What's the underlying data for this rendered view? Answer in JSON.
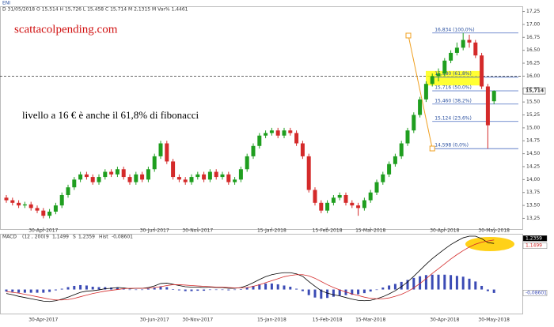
{
  "chart_data": {
    "type": "candlestick",
    "symbol": "ENI",
    "ohlc_header": "D 31/05/2018   O 15,514   H 15,726   L 15,458   C 15,714   M 2,1315 M   Var% 1,4461",
    "site": "scattacolpending.com",
    "note": "livello a 16 € è anche il 61,8% di fibonacci",
    "last_price_label": "15,714",
    "up_color": "#1f9e1f",
    "down_color": "#d42a2a",
    "ylim": [
      13.15,
      17.35
    ],
    "yticks": [
      {
        "value": 17.25,
        "label": "17,25"
      },
      {
        "value": 17,
        "label": "17,00"
      },
      {
        "value": 16.75,
        "label": "16,75"
      },
      {
        "value": 16.5,
        "label": "16,50"
      },
      {
        "value": 16.25,
        "label": "16,25"
      },
      {
        "value": 16,
        "label": "16,00"
      },
      {
        "value": 15.75,
        "label": "15,75"
      },
      {
        "value": 15.5,
        "label": "15,50"
      },
      {
        "value": 15.25,
        "label": "15,25"
      },
      {
        "value": 15,
        "label": "15,00"
      },
      {
        "value": 14.75,
        "label": "14,75"
      },
      {
        "value": 14.5,
        "label": "14,50"
      },
      {
        "value": 14.25,
        "label": "14,25"
      },
      {
        "value": 14,
        "label": "14,00"
      },
      {
        "value": 13.75,
        "label": "13,75"
      },
      {
        "value": 13.5,
        "label": "13,50"
      },
      {
        "value": 13.25,
        "label": "13,25"
      }
    ],
    "dashed_level": 16,
    "fib_levels": [
      {
        "value": 16.834,
        "label": "16,834 (100,0%)"
      },
      {
        "value": 15.98,
        "label": "15,980 (61,8%)"
      },
      {
        "value": 15.716,
        "label": "15,716 (50,0%)"
      },
      {
        "value": 15.46,
        "label": "15,460 (38,2%)"
      },
      {
        "value": 15.124,
        "label": "15,124 (23,6%)"
      },
      {
        "value": 14.598,
        "label": "14,598 (0,0%)"
      }
    ],
    "categories": [
      null,
      null,
      null,
      null,
      null,
      null,
      "30-Apr-2017",
      null,
      null,
      null,
      null,
      null,
      null,
      null,
      null,
      null,
      null,
      null,
      null,
      null,
      null,
      null,
      null,
      null,
      "30-Jun-2017",
      null,
      null,
      null,
      null,
      null,
      null,
      "30-Nov-2017",
      null,
      null,
      null,
      null,
      null,
      null,
      null,
      null,
      null,
      null,
      null,
      "15-Jan-2018",
      null,
      null,
      null,
      null,
      null,
      null,
      null,
      null,
      "15-Feb-2018",
      null,
      null,
      null,
      null,
      null,
      null,
      "15-Mar-2018",
      null,
      null,
      null,
      null,
      null,
      null,
      null,
      null,
      null,
      null,
      null,
      "30-Apr-2018",
      null,
      null,
      null,
      null,
      null,
      null,
      null,
      "30-May-2018"
    ],
    "candles": [
      [
        13.65,
        13.7,
        13.55,
        13.6
      ],
      [
        13.6,
        13.65,
        13.5,
        13.55
      ],
      [
        13.55,
        13.6,
        13.45,
        13.5
      ],
      [
        13.5,
        13.57,
        13.45,
        13.52
      ],
      [
        13.52,
        13.57,
        13.4,
        13.45
      ],
      [
        13.45,
        13.5,
        13.35,
        13.4
      ],
      [
        13.4,
        13.45,
        13.25,
        13.3
      ],
      [
        13.3,
        13.43,
        13.25,
        13.38
      ],
      [
        13.38,
        13.55,
        13.33,
        13.5
      ],
      [
        13.5,
        13.75,
        13.45,
        13.7
      ],
      [
        13.7,
        13.9,
        13.65,
        13.85
      ],
      [
        13.85,
        14.05,
        13.8,
        14.0
      ],
      [
        14.0,
        14.15,
        13.95,
        14.1
      ],
      [
        14.1,
        14.15,
        14.0,
        14.05
      ],
      [
        14.05,
        14.1,
        13.9,
        13.95
      ],
      [
        13.95,
        14.1,
        13.9,
        14.05
      ],
      [
        14.05,
        14.2,
        14.0,
        14.15
      ],
      [
        14.15,
        14.2,
        14.05,
        14.1
      ],
      [
        14.1,
        14.25,
        14.05,
        14.2
      ],
      [
        14.2,
        14.25,
        14.0,
        14.05
      ],
      [
        14.05,
        14.1,
        13.9,
        13.95
      ],
      [
        13.95,
        14.15,
        13.9,
        14.1
      ],
      [
        14.1,
        14.15,
        13.95,
        14.0
      ],
      [
        14.0,
        14.25,
        13.95,
        14.2
      ],
      [
        14.2,
        14.5,
        14.15,
        14.45
      ],
      [
        14.45,
        14.75,
        14.4,
        14.7
      ],
      [
        14.7,
        14.75,
        14.3,
        14.35
      ],
      [
        14.35,
        14.4,
        14.0,
        14.05
      ],
      [
        14.05,
        14.1,
        13.95,
        14.0
      ],
      [
        14.0,
        14.05,
        13.9,
        13.95
      ],
      [
        13.95,
        14.1,
        13.9,
        14.05
      ],
      [
        14.05,
        14.15,
        14.0,
        14.1
      ],
      [
        14.1,
        14.15,
        13.95,
        14.0
      ],
      [
        14.0,
        14.2,
        13.95,
        14.15
      ],
      [
        14.15,
        14.2,
        14.0,
        14.05
      ],
      [
        14.05,
        14.15,
        14.0,
        14.1
      ],
      [
        14.1,
        14.15,
        13.9,
        13.95
      ],
      [
        13.95,
        14.05,
        13.9,
        14.0
      ],
      [
        14.0,
        14.25,
        13.95,
        14.2
      ],
      [
        14.2,
        14.5,
        14.15,
        14.45
      ],
      [
        14.45,
        14.7,
        14.4,
        14.65
      ],
      [
        14.65,
        14.9,
        14.6,
        14.85
      ],
      [
        14.85,
        14.95,
        14.8,
        14.9
      ],
      [
        14.9,
        15.0,
        14.85,
        14.95
      ],
      [
        14.95,
        15.0,
        14.8,
        14.85
      ],
      [
        14.85,
        15.0,
        14.8,
        14.95
      ],
      [
        14.95,
        15.0,
        14.85,
        14.9
      ],
      [
        14.9,
        14.95,
        14.65,
        14.7
      ],
      [
        14.7,
        14.75,
        14.4,
        14.45
      ],
      [
        14.45,
        14.5,
        13.75,
        13.8
      ],
      [
        13.8,
        13.85,
        13.5,
        13.55
      ],
      [
        13.55,
        13.6,
        13.35,
        13.4
      ],
      [
        13.4,
        13.6,
        13.35,
        13.55
      ],
      [
        13.55,
        13.7,
        13.5,
        13.65
      ],
      [
        13.65,
        13.75,
        13.6,
        13.7
      ],
      [
        13.7,
        13.75,
        13.5,
        13.55
      ],
      [
        13.55,
        13.6,
        13.45,
        13.5
      ],
      [
        13.5,
        13.55,
        13.3,
        13.45
      ],
      [
        13.45,
        13.65,
        13.4,
        13.6
      ],
      [
        13.6,
        13.8,
        13.55,
        13.75
      ],
      [
        13.75,
        14.0,
        13.7,
        13.95
      ],
      [
        13.95,
        14.15,
        13.9,
        14.1
      ],
      [
        14.1,
        14.35,
        14.05,
        14.3
      ],
      [
        14.3,
        14.5,
        14.25,
        14.45
      ],
      [
        14.45,
        14.75,
        14.4,
        14.7
      ],
      [
        14.7,
        15.0,
        14.65,
        14.95
      ],
      [
        14.95,
        15.3,
        14.9,
        15.25
      ],
      [
        15.25,
        15.6,
        15.2,
        15.55
      ],
      [
        15.55,
        15.9,
        15.5,
        15.85
      ],
      [
        15.85,
        16.05,
        15.8,
        16.0
      ],
      [
        16.0,
        16.15,
        15.9,
        16.05
      ],
      [
        16.05,
        16.35,
        16.0,
        16.3
      ],
      [
        16.3,
        16.5,
        16.25,
        16.45
      ],
      [
        16.45,
        16.65,
        16.4,
        16.55
      ],
      [
        16.55,
        16.834,
        16.5,
        16.7
      ],
      [
        16.7,
        16.8,
        16.55,
        16.65
      ],
      [
        16.65,
        16.7,
        16.35,
        16.4
      ],
      [
        16.4,
        16.45,
        15.75,
        15.8
      ],
      [
        15.8,
        15.85,
        14.598,
        15.05
      ],
      [
        15.514,
        15.726,
        15.458,
        15.714
      ]
    ],
    "macd": {
      "name": "MACD",
      "params": "(12 , 200)",
      "period": "9",
      "macd_value": "1,1499",
      "signal_label": "S",
      "signal_value": "1,2359",
      "hist_label": "Hist",
      "hist_value": "-0,08601",
      "ylim": [
        -0.6,
        1.37
      ],
      "series": [
        {
          "color": "#000000",
          "values": [
            -0.1,
            -0.13,
            -0.17,
            -0.2,
            -0.23,
            -0.26,
            -0.29,
            -0.3,
            -0.28,
            -0.24,
            -0.19,
            -0.13,
            -0.07,
            -0.04,
            -0.03,
            -0.01,
            0.02,
            0.03,
            0.05,
            0.04,
            0.02,
            0.03,
            0.03,
            0.05,
            0.09,
            0.15,
            0.16,
            0.13,
            0.1,
            0.07,
            0.06,
            0.06,
            0.05,
            0.06,
            0.05,
            0.05,
            0.03,
            0.03,
            0.05,
            0.1,
            0.17,
            0.25,
            0.32,
            0.37,
            0.4,
            0.42,
            0.42,
            0.39,
            0.33,
            0.2,
            0.08,
            -0.03,
            -0.09,
            -0.13,
            -0.16,
            -0.2,
            -0.24,
            -0.27,
            -0.28,
            -0.27,
            -0.23,
            -0.18,
            -0.11,
            -0.03,
            0.07,
            0.19,
            0.33,
            0.48,
            0.63,
            0.77,
            0.89,
            1.01,
            1.12,
            1.21,
            1.29,
            1.33,
            1.33,
            1.27,
            1.17,
            1.1499
          ]
        },
        {
          "color": "#d42a2a",
          "values": [
            -0.05,
            -0.07,
            -0.09,
            -0.12,
            -0.15,
            -0.18,
            -0.21,
            -0.24,
            -0.26,
            -0.26,
            -0.25,
            -0.22,
            -0.18,
            -0.14,
            -0.1,
            -0.07,
            -0.04,
            -0.02,
            0.0,
            0.02,
            0.03,
            0.03,
            0.03,
            0.03,
            0.05,
            0.07,
            0.1,
            0.12,
            0.12,
            0.11,
            0.1,
            0.09,
            0.08,
            0.07,
            0.06,
            0.06,
            0.05,
            0.04,
            0.04,
            0.05,
            0.08,
            0.12,
            0.17,
            0.22,
            0.27,
            0.32,
            0.35,
            0.37,
            0.37,
            0.34,
            0.28,
            0.2,
            0.12,
            0.05,
            -0.01,
            -0.06,
            -0.11,
            -0.15,
            -0.19,
            -0.22,
            -0.23,
            -0.23,
            -0.21,
            -0.17,
            -0.12,
            -0.05,
            0.04,
            0.15,
            0.27,
            0.4,
            0.52,
            0.64,
            0.76,
            0.87,
            0.97,
            1.06,
            1.13,
            1.18,
            1.21,
            1.2359
          ]
        },
        {
          "color": "#3b4bb5",
          "values": [
            -0.05,
            -0.06,
            -0.08,
            -0.08,
            -0.08,
            -0.08,
            -0.08,
            -0.06,
            -0.02,
            0.02,
            0.06,
            0.09,
            0.11,
            0.1,
            0.07,
            0.06,
            0.06,
            0.05,
            0.05,
            0.02,
            -0.01,
            0.0,
            0.0,
            0.02,
            0.04,
            0.08,
            0.06,
            0.01,
            -0.02,
            -0.04,
            -0.04,
            -0.03,
            -0.03,
            -0.01,
            -0.01,
            -0.01,
            -0.02,
            -0.01,
            0.01,
            0.05,
            0.09,
            0.13,
            0.15,
            0.15,
            0.13,
            0.1,
            0.07,
            0.02,
            -0.04,
            -0.14,
            -0.2,
            -0.23,
            -0.21,
            -0.18,
            -0.15,
            -0.14,
            -0.13,
            -0.12,
            -0.09,
            -0.05,
            0.0,
            0.05,
            0.1,
            0.14,
            0.19,
            0.24,
            0.29,
            0.33,
            0.36,
            0.37,
            0.37,
            0.37,
            0.36,
            0.34,
            0.32,
            0.27,
            0.2,
            0.09,
            -0.04,
            -0.08601
          ]
        }
      ]
    }
  }
}
